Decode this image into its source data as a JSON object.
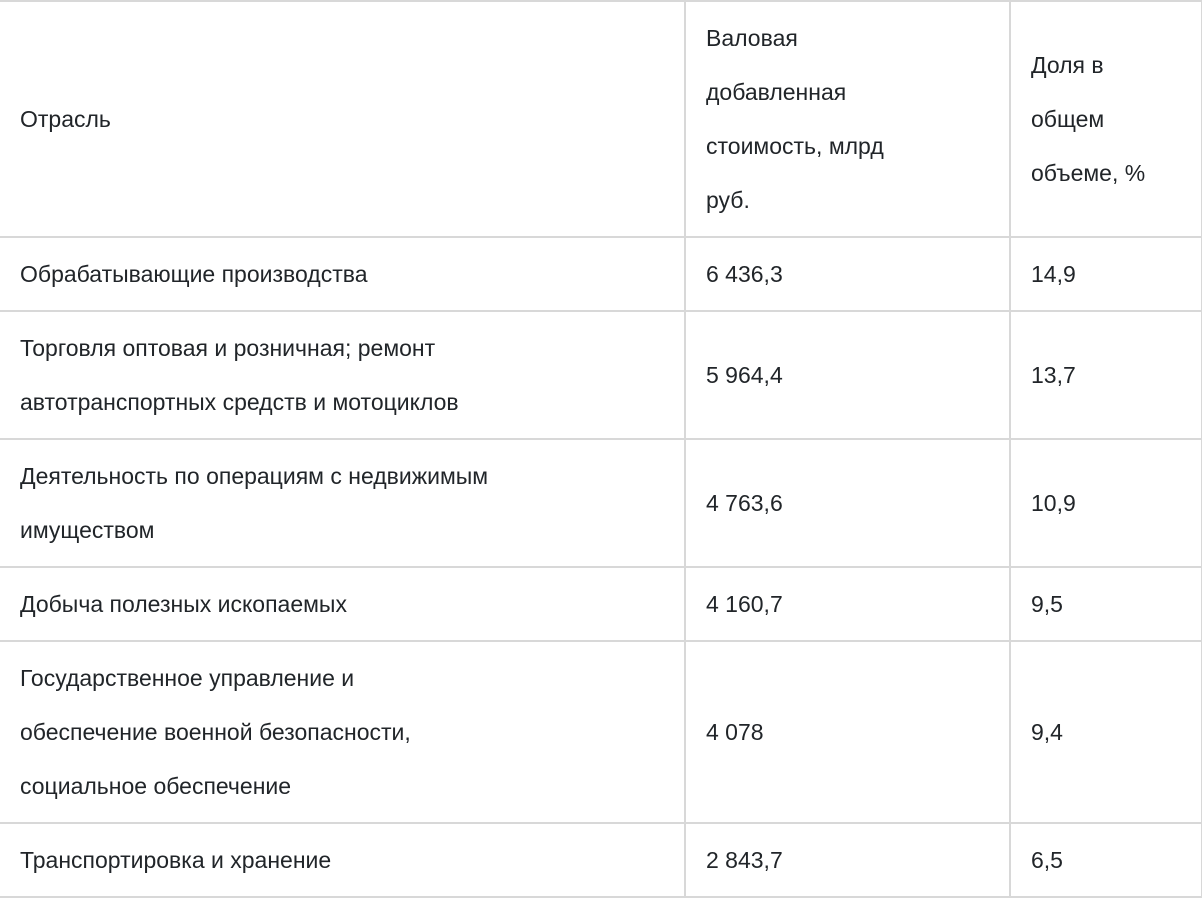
{
  "table": {
    "columns": [
      {
        "id": "sector",
        "label": "Отрасль"
      },
      {
        "id": "gva",
        "label": "Валовая\nдобавленная\nстоимость, млрд\nруб."
      },
      {
        "id": "share",
        "label": "Доля в\nобщем\nобъеме, %"
      }
    ],
    "rows": [
      {
        "sector": "Обрабатывающие производства",
        "gva": "6 436,3",
        "share": "14,9"
      },
      {
        "sector": "Торговля оптовая и розничная; ремонт\nавтотранспортных средств и мотоциклов",
        "gva": "5 964,4",
        "share": "13,7"
      },
      {
        "sector": "Деятельность по операциям с недвижимым\nимуществом",
        "gva": "4 763,6",
        "share": "10,9"
      },
      {
        "sector": "Добыча полезных ископаемых",
        "gva": "4 160,7",
        "share": "9,5"
      },
      {
        "sector": "Государственное управление и\nобеспечение военной безопасности,\nсоциальное обеспечение",
        "gva": "4 078",
        "share": "9,4"
      },
      {
        "sector": "Транспортировка и хранение",
        "gva": "2 843,7",
        "share": "6,5"
      }
    ]
  },
  "colors": {
    "text": "#212529",
    "border": "#d8d8d8",
    "background": "#ffffff"
  },
  "chart_data": {
    "type": "table",
    "columns": [
      "Отрасль",
      "Валовая добавленная стоимость, млрд руб.",
      "Доля в общем объеме, %"
    ],
    "rows": [
      [
        "Обрабатывающие производства",
        6436.3,
        14.9
      ],
      [
        "Торговля оптовая и розничная; ремонт автотранспортных средств и мотоциклов",
        5964.4,
        13.7
      ],
      [
        "Деятельность по операциям с недвижимым имуществом",
        4763.6,
        10.9
      ],
      [
        "Добыча полезных ископаемых",
        4160.7,
        9.5
      ],
      [
        "Государственное управление и обеспечение военной безопасности, социальное обеспечение",
        4078,
        9.4
      ],
      [
        "Транспортировка и хранение",
        2843.7,
        6.5
      ]
    ]
  }
}
